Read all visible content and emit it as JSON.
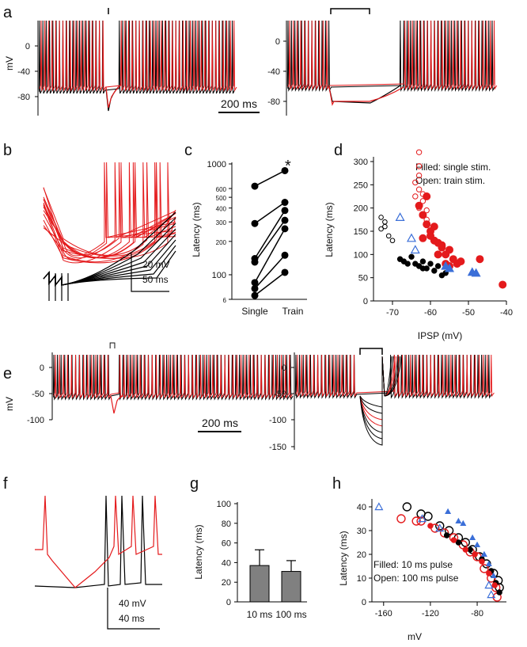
{
  "colors": {
    "black": "#000000",
    "red": "#e41a1c",
    "blue": "#3b6fd8",
    "bar_gray": "#808080"
  },
  "panels": {
    "a": {
      "letter": "a",
      "ylabel": "mV",
      "yticks": [
        "0",
        "-40",
        "-80"
      ],
      "yticks_right": [
        "0",
        "-40",
        "-80"
      ],
      "scalebar": "200 ms"
    },
    "b": {
      "letter": "b",
      "scale_v": "20 mV",
      "scale_t": "50 ms"
    },
    "c": {
      "letter": "c",
      "ylabel": "Latency (ms)",
      "yticks": [
        "1000",
        "600",
        "500",
        "400",
        "300",
        "200",
        "100",
        "6"
      ],
      "categories": [
        "Single",
        "Train"
      ],
      "star": "*"
    },
    "d": {
      "letter": "d",
      "ylabel": "Latency (ms)",
      "xlabel": "IPSP (mV)",
      "yticks": [
        "300",
        "250",
        "200",
        "150",
        "100",
        "50",
        "0"
      ],
      "xticks": [
        "-70",
        "-60",
        "-50",
        "-40"
      ],
      "legend_filled": "Filled: single stim.",
      "legend_open": "Open: train stim."
    },
    "e": {
      "letter": "e",
      "ylabel": "mV",
      "yticks": [
        "0",
        "-50",
        "-100"
      ],
      "yticks_right": [
        "0",
        "-50",
        "-100",
        "-150"
      ],
      "scalebar": "200 ms",
      "stim_mark": "⊓"
    },
    "f": {
      "letter": "f",
      "scale_v": "40 mV",
      "scale_t": "40 ms"
    },
    "g": {
      "letter": "g",
      "ylabel": "Latency (ms)",
      "yticks": [
        "100",
        "80",
        "60",
        "40",
        "20",
        "0"
      ],
      "categories": [
        "10 ms",
        "100 ms"
      ]
    },
    "h": {
      "letter": "h",
      "ylabel": "Latency (ms)",
      "xlabel": "mV",
      "yticks": [
        "40",
        "30",
        "20",
        "10",
        "0"
      ],
      "xticks": [
        "-160",
        "-120",
        "-80"
      ],
      "legend_filled": "Filled: 10 ms pulse",
      "legend_open": "Open: 100 ms pulse"
    }
  },
  "chart_data": [
    {
      "panel": "c",
      "type": "scatter",
      "ylabel": "Latency (ms)",
      "yscale": "log",
      "categories": [
        "Single",
        "Train"
      ],
      "pairs": [
        [
          630,
          870
        ],
        [
          290,
          450
        ],
        [
          140,
          380
        ],
        [
          130,
          310
        ],
        [
          85,
          260
        ],
        [
          75,
          150
        ],
        [
          65,
          105
        ]
      ]
    },
    {
      "panel": "d",
      "type": "scatter",
      "xlabel": "IPSP (mV)",
      "ylabel": "Latency (ms)",
      "xlim": [
        -75,
        -40
      ],
      "ylim": [
        0,
        320
      ],
      "series": [
        {
          "color": "black",
          "filled": true,
          "points": [
            [
              -68,
              90
            ],
            [
              -67,
              85
            ],
            [
              -65,
              95
            ],
            [
              -64,
              80
            ],
            [
              -63,
              75
            ],
            [
              -62,
              85
            ],
            [
              -61,
              70
            ],
            [
              -60,
              80
            ],
            [
              -59,
              65
            ],
            [
              -58,
              75
            ],
            [
              -57,
              55
            ],
            [
              -56,
              60
            ],
            [
              -66,
              80
            ],
            [
              -62,
              70
            ]
          ]
        },
        {
          "color": "black",
          "filled": false,
          "points": [
            [
              -73,
              180
            ],
            [
              -72,
              170
            ],
            [
              -73,
              155
            ],
            [
              -71,
              140
            ],
            [
              -70,
              130
            ],
            [
              -72,
              160
            ]
          ]
        },
        {
          "color": "red",
          "filled": true,
          "points": [
            [
              -63,
              205
            ],
            [
              -62,
              185
            ],
            [
              -61,
              165
            ],
            [
              -61,
              225
            ],
            [
              -60,
              150
            ],
            [
              -59,
              160
            ],
            [
              -59,
              130
            ],
            [
              -58,
              125
            ],
            [
              -57,
              115
            ],
            [
              -56,
              100
            ],
            [
              -55,
              75
            ],
            [
              -54,
              90
            ],
            [
              -53,
              80
            ],
            [
              -52,
              85
            ],
            [
              -47,
              90
            ],
            [
              -41,
              35
            ],
            [
              -60,
              140
            ],
            [
              -58,
              100
            ],
            [
              -62,
              135
            ],
            [
              -57,
              120
            ],
            [
              -56,
              80
            ],
            [
              -55,
              110
            ]
          ]
        },
        {
          "color": "red",
          "filled": false,
          "points": [
            [
              -63,
              320
            ],
            [
              -63,
              290
            ],
            [
              -63,
              270
            ],
            [
              -64,
              255
            ],
            [
              -63,
              240
            ],
            [
              -62,
              230
            ],
            [
              -64,
              225
            ],
            [
              -62,
              215
            ],
            [
              -63,
              200
            ],
            [
              -61,
              195
            ],
            [
              -62,
              185
            ],
            [
              -61,
              175
            ]
          ]
        },
        {
          "color": "blue",
          "filled": true,
          "points": [
            [
              -56,
              75
            ],
            [
              -55,
              70
            ],
            [
              -49,
              62
            ],
            [
              -48,
              60
            ]
          ]
        },
        {
          "color": "blue",
          "filled": false,
          "points": [
            [
              -68,
              180
            ],
            [
              -65,
              135
            ],
            [
              -64,
              110
            ]
          ]
        }
      ]
    },
    {
      "panel": "g",
      "type": "bar",
      "ylabel": "Latency (ms)",
      "ylim": [
        0,
        100
      ],
      "categories": [
        "10 ms",
        "100 ms"
      ],
      "values": [
        37,
        31
      ],
      "errors": [
        16,
        11
      ]
    },
    {
      "panel": "h",
      "type": "scatter",
      "xlabel": "mV",
      "ylabel": "Latency (ms)",
      "xlim": [
        -170,
        -55
      ],
      "ylim": [
        0,
        42
      ],
      "series": [
        {
          "color": "black",
          "filled": false,
          "points": [
            [
              -140,
              40
            ],
            [
              -128,
              37
            ],
            [
              -122,
              36
            ],
            [
              -112,
              32
            ],
            [
              -104,
              30
            ],
            [
              -96,
              27
            ],
            [
              -90,
              25
            ],
            [
              -84,
              22
            ],
            [
              -78,
              19
            ],
            [
              -72,
              16
            ],
            [
              -66,
              12
            ],
            [
              -62,
              9
            ],
            [
              -61,
              6
            ]
          ]
        },
        {
          "color": "red",
          "filled": false,
          "points": [
            [
              -145,
              35
            ],
            [
              -132,
              34
            ],
            [
              -128,
              34
            ],
            [
              -116,
              31
            ],
            [
              -108,
              29
            ],
            [
              -100,
              27
            ],
            [
              -92,
              24
            ],
            [
              -86,
              21
            ],
            [
              -80,
              19
            ],
            [
              -74,
              14
            ],
            [
              -68,
              10
            ],
            [
              -64,
              6
            ],
            [
              -63,
              2
            ]
          ]
        },
        {
          "color": "blue",
          "filled": false,
          "points": [
            [
              -164,
              40
            ],
            [
              -127,
              35
            ],
            [
              -112,
              31
            ],
            [
              -70,
              7
            ],
            [
              -68,
              3
            ]
          ]
        },
        {
          "color": "black",
          "filled": true,
          "points": [
            [
              -106,
              28
            ],
            [
              -96,
              25
            ],
            [
              -86,
              22
            ],
            [
              -76,
              18
            ],
            [
              -68,
              13
            ],
            [
              -64,
              8
            ],
            [
              -61,
              4
            ]
          ]
        },
        {
          "color": "red",
          "filled": true,
          "points": [
            [
              -120,
              32
            ],
            [
              -100,
              26
            ],
            [
              -90,
              22
            ],
            [
              -82,
              20
            ],
            [
              -76,
              17
            ],
            [
              -70,
              12
            ],
            [
              -65,
              7
            ]
          ]
        },
        {
          "color": "blue",
          "filled": true,
          "points": [
            [
              -105,
              38
            ],
            [
              -96,
              34
            ],
            [
              -92,
              33
            ],
            [
              -84,
              27
            ],
            [
              -80,
              24
            ],
            [
              -74,
              20
            ],
            [
              -70,
              16
            ],
            [
              -66,
              11
            ]
          ]
        }
      ]
    }
  ]
}
